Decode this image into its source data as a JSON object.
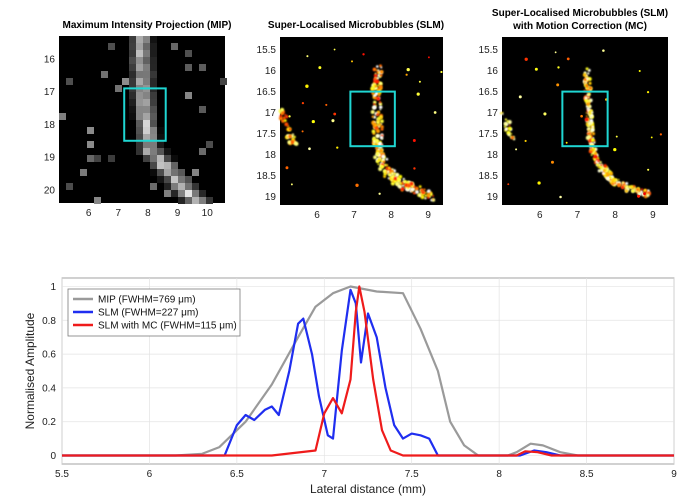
{
  "chart_data": [
    {
      "type": "heatmap",
      "title": "Maximum Intensity Projection (MIP)",
      "colormap": "gray",
      "x_ticks": [
        6,
        7,
        8,
        9,
        10
      ],
      "y_ticks": [
        16,
        17,
        18,
        19,
        20
      ],
      "xlim": [
        5.0,
        10.6
      ],
      "ylim": [
        15.3,
        20.4
      ],
      "roi": {
        "x": [
          7.2,
          8.6
        ],
        "y": [
          16.9,
          18.5
        ],
        "color": "#1fd6d2"
      }
    },
    {
      "type": "heatmap",
      "title": "Super-Localised Microbubbles (SLM)",
      "colormap": "hot",
      "x_ticks": [
        6,
        7,
        8,
        9
      ],
      "y_ticks": [
        15.5,
        16,
        16.5,
        17,
        17.5,
        18,
        18.5,
        19
      ],
      "xlim": [
        5.0,
        9.4
      ],
      "ylim": [
        15.2,
        19.2
      ],
      "roi": {
        "x": [
          6.9,
          8.1
        ],
        "y": [
          16.5,
          17.8
        ],
        "color": "#1fd6d2"
      }
    },
    {
      "type": "heatmap",
      "title": "Super-Localised Microbubbles (SLM)",
      "subtitle": "with Motion Correction (MC)",
      "colormap": "hot",
      "x_ticks": [
        6,
        7,
        8,
        9
      ],
      "y_ticks": [
        15.5,
        16,
        16.5,
        17,
        17.5,
        18,
        18.5,
        19
      ],
      "xlim": [
        5.0,
        9.4
      ],
      "ylim": [
        15.2,
        19.2
      ],
      "roi": {
        "x": [
          6.6,
          7.8
        ],
        "y": [
          16.5,
          17.8
        ],
        "color": "#1fd6d2"
      }
    },
    {
      "type": "line",
      "xlabel": "Lateral distance (mm)",
      "ylabel": "Normalised Amplitude",
      "xlim": [
        5.5,
        9
      ],
      "ylim": [
        -0.05,
        1.05
      ],
      "x_ticks": [
        5.5,
        6,
        6.5,
        7,
        7.5,
        8,
        8.5,
        9
      ],
      "y_ticks": [
        0,
        0.2,
        0.4,
        0.6,
        0.8,
        1
      ],
      "grid": true,
      "legend_position": "top-left",
      "series": [
        {
          "name": "MIP (FWHM=769 μm)",
          "color": "#9a9a9a",
          "points": [
            [
              5.5,
              0
            ],
            [
              6.15,
              0
            ],
            [
              6.3,
              0.01
            ],
            [
              6.4,
              0.05
            ],
            [
              6.55,
              0.2
            ],
            [
              6.7,
              0.42
            ],
            [
              6.85,
              0.7
            ],
            [
              6.95,
              0.88
            ],
            [
              7.05,
              0.96
            ],
            [
              7.15,
              1.0
            ],
            [
              7.3,
              0.97
            ],
            [
              7.45,
              0.96
            ],
            [
              7.55,
              0.75
            ],
            [
              7.65,
              0.5
            ],
            [
              7.72,
              0.2
            ],
            [
              7.8,
              0.06
            ],
            [
              7.88,
              0
            ],
            [
              8.05,
              0
            ],
            [
              8.1,
              0.02
            ],
            [
              8.18,
              0.07
            ],
            [
              8.25,
              0.06
            ],
            [
              8.35,
              0.02
            ],
            [
              8.45,
              0
            ],
            [
              9,
              0
            ]
          ]
        },
        {
          "name": "SLM (FWHM=227 μm)",
          "color": "#1f2ef0",
          "points": [
            [
              5.5,
              0
            ],
            [
              6.43,
              0
            ],
            [
              6.5,
              0.18
            ],
            [
              6.55,
              0.24
            ],
            [
              6.6,
              0.21
            ],
            [
              6.66,
              0.27
            ],
            [
              6.7,
              0.29
            ],
            [
              6.74,
              0.24
            ],
            [
              6.8,
              0.5
            ],
            [
              6.85,
              0.78
            ],
            [
              6.88,
              0.81
            ],
            [
              6.93,
              0.6
            ],
            [
              6.97,
              0.35
            ],
            [
              7.02,
              0.12
            ],
            [
              7.05,
              0.1
            ],
            [
              7.1,
              0.62
            ],
            [
              7.15,
              0.98
            ],
            [
              7.18,
              0.9
            ],
            [
              7.21,
              0.55
            ],
            [
              7.25,
              0.84
            ],
            [
              7.3,
              0.7
            ],
            [
              7.35,
              0.4
            ],
            [
              7.4,
              0.18
            ],
            [
              7.45,
              0.1
            ],
            [
              7.5,
              0.13
            ],
            [
              7.55,
              0.12
            ],
            [
              7.6,
              0.1
            ],
            [
              7.65,
              0
            ],
            [
              8.12,
              0
            ],
            [
              8.2,
              0.03
            ],
            [
              8.27,
              0.02
            ],
            [
              8.35,
              0
            ],
            [
              9,
              0
            ]
          ]
        },
        {
          "name": "SLM with MC (FWHM=115 μm)",
          "color": "#ef1b1b",
          "points": [
            [
              5.5,
              0
            ],
            [
              6.7,
              0
            ],
            [
              6.95,
              0.03
            ],
            [
              7.0,
              0.25
            ],
            [
              7.05,
              0.34
            ],
            [
              7.1,
              0.25
            ],
            [
              7.15,
              0.45
            ],
            [
              7.18,
              0.85
            ],
            [
              7.2,
              1.0
            ],
            [
              7.23,
              0.85
            ],
            [
              7.28,
              0.45
            ],
            [
              7.33,
              0.15
            ],
            [
              7.38,
              0.03
            ],
            [
              7.45,
              0
            ],
            [
              8.1,
              0
            ],
            [
              8.15,
              0.025
            ],
            [
              8.22,
              0.02
            ],
            [
              8.3,
              0
            ],
            [
              9,
              0
            ]
          ]
        }
      ]
    }
  ]
}
